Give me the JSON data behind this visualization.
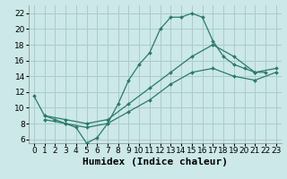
{
  "background_color": "#cce8e8",
  "grid_color": "#aacccc",
  "line_color": "#2a7a6a",
  "marker_color": "#2a7a6a",
  "xlabel": "Humidex (Indice chaleur)",
  "xlabel_fontsize": 8,
  "tick_fontsize": 6.5,
  "xlim": [
    -0.5,
    23.5
  ],
  "ylim": [
    5.5,
    23.0
  ],
  "xticks": [
    0,
    1,
    2,
    3,
    4,
    5,
    6,
    7,
    8,
    9,
    10,
    11,
    12,
    13,
    14,
    15,
    16,
    17,
    18,
    19,
    20,
    21,
    22,
    23
  ],
  "yticks": [
    6,
    8,
    10,
    12,
    14,
    16,
    18,
    20,
    22
  ],
  "line1_x": [
    0,
    1,
    2,
    3,
    4,
    5,
    6,
    7,
    8,
    9,
    10,
    11,
    12,
    13,
    14,
    15,
    16,
    17,
    18,
    19,
    20,
    21,
    22
  ],
  "line1_y": [
    11.5,
    9,
    8.5,
    8,
    7.5,
    5.5,
    6.2,
    8,
    10.5,
    13.5,
    15.5,
    17,
    20,
    21.5,
    21.5,
    22,
    21.5,
    18.5,
    16.5,
    15.5,
    15,
    14.5,
    14.5
  ],
  "line2_x": [
    1,
    3,
    5,
    7,
    9,
    11,
    13,
    15,
    17,
    19,
    21,
    23
  ],
  "line2_y": [
    9.0,
    8.5,
    8.0,
    8.5,
    10.5,
    12.5,
    14.5,
    16.5,
    18.0,
    16.5,
    14.5,
    15.0
  ],
  "line3_x": [
    1,
    3,
    5,
    7,
    9,
    11,
    13,
    15,
    17,
    19,
    21,
    23
  ],
  "line3_y": [
    8.5,
    8.0,
    7.5,
    8.0,
    9.5,
    11.0,
    13.0,
    14.5,
    15.0,
    14.0,
    13.5,
    14.5
  ]
}
